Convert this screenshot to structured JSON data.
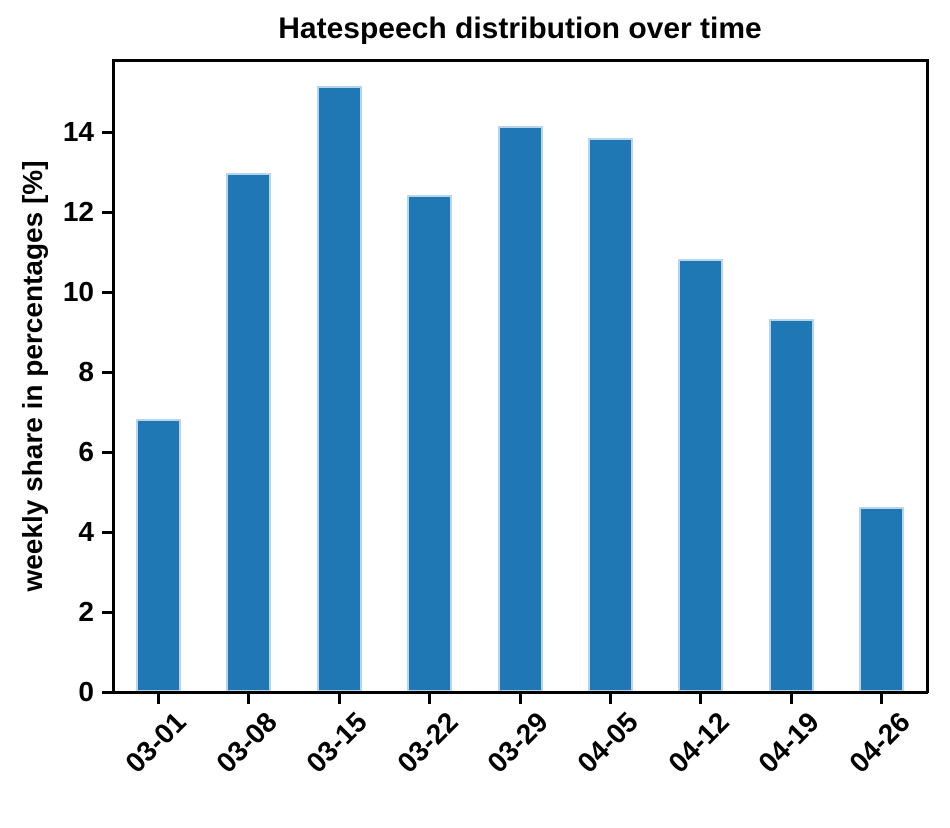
{
  "chart_data": {
    "type": "bar",
    "title": "Hatespeech distribution over time",
    "xlabel": "",
    "ylabel": "weekly share in percentages [%]",
    "categories": [
      "03-01",
      "03-08",
      "03-15",
      "03-22",
      "03-29",
      "04-05",
      "04-12",
      "04-19",
      "04-26"
    ],
    "values": [
      6.83,
      12.97,
      15.16,
      12.42,
      14.14,
      13.85,
      10.83,
      9.33,
      4.62
    ],
    "ylim": [
      0,
      15.8
    ],
    "yticks": [
      0,
      2,
      4,
      6,
      8,
      10,
      12,
      14
    ],
    "grid": false,
    "legend_position": "none",
    "x_tick_rotation_deg": 45,
    "bar_color": "#1f77b4",
    "bar_edge_color": "#b9d5ec",
    "axis_color": "#000000",
    "background_color": "#ffffff"
  }
}
